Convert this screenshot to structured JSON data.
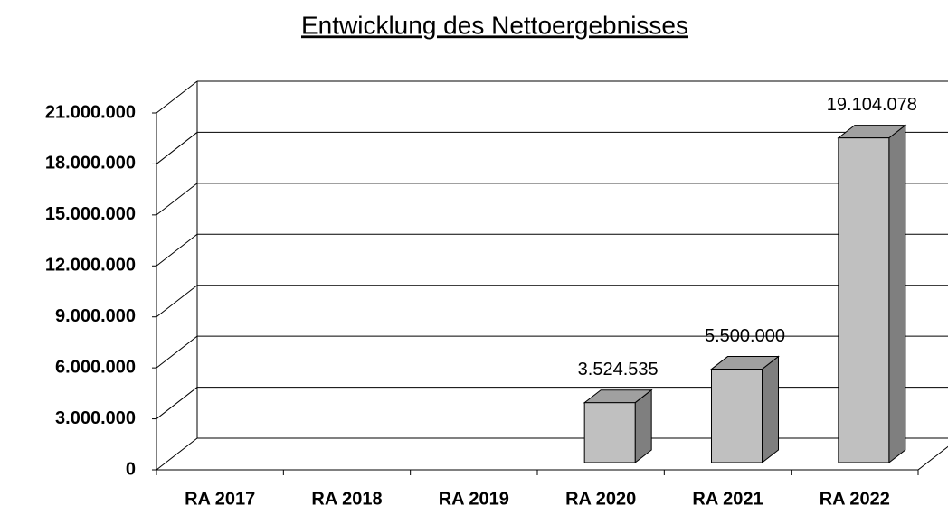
{
  "chart_data": {
    "type": "bar3d",
    "title": "Entwicklung des Nettoergebnisses",
    "categories": [
      "RA 2017",
      "RA 2018",
      "RA 2019",
      "RA 2020",
      "RA 2021",
      "RA 2022"
    ],
    "values": [
      null,
      null,
      null,
      3524535,
      5500000,
      19104078
    ],
    "value_labels": [
      null,
      null,
      null,
      "3.524.535",
      "5.500.000",
      "19.104.078"
    ],
    "color": "#c0c0c0",
    "ylim": [
      0,
      21000000
    ],
    "yticks": [
      0,
      {
        "value": 3000000,
        "label": "3.000.000"
      },
      {
        "value": 6000000,
        "label": "6.000.000"
      },
      {
        "value": 9000000,
        "label": "9.000.000"
      },
      {
        "value": 12000000,
        "label": "12.000.000"
      },
      {
        "value": 15000000,
        "label": "15.000.000"
      },
      {
        "value": 18000000,
        "label": "18.000.000"
      },
      {
        "value": 21000000,
        "label": "21.000.000"
      }
    ],
    "grid": true
  }
}
